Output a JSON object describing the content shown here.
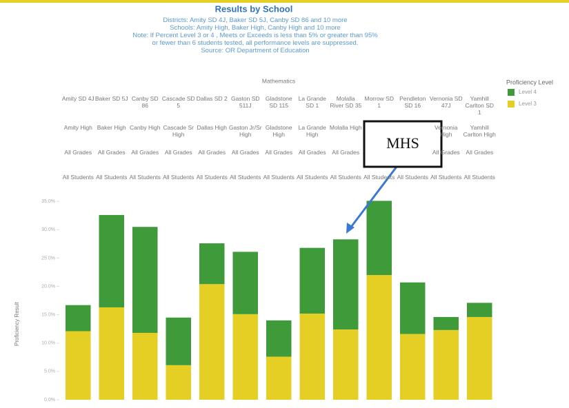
{
  "chart_data": {
    "type": "stacked_bar",
    "title": "Results by School",
    "subtitle": [
      "Districts: Amity SD 4J, Baker SD 5J, Canby SD 86 and 10 more",
      "Schools: Amity High, Baker High, Canby High and 10 more",
      "Note: If Percent Level 3 or 4 , Meets or Exceeds is less than 5% or greater than 95%",
      "or fewer than 6 students tested, all performance levels are suppressed.",
      "Source: OR Department of Education"
    ],
    "header": "Mathematics",
    "y_label": "Proficiency Result",
    "legend_title": "Proficiency Level",
    "categories": [
      "Amity SD 4J",
      "Baker SD 5J",
      "Canby SD 86",
      "Cascade SD 5",
      "Dallas SD 2",
      "Gaston SD 511J",
      "Gladstone SD 115",
      "La Grande SD 1",
      "Molalla River SD 35",
      "Morrow SD 1",
      "Pendleton SD 16",
      "Vernonia SD 47J",
      "Yamhill Carlton SD 1"
    ],
    "schools": [
      "Amity High",
      "Baker High",
      "Canby High",
      "Cascade Sr High",
      "Dallas High",
      "Gaston Jr/Sr High",
      "Gladstone High",
      "La Grande High",
      "Molalla High",
      null,
      null,
      "Vernonia High",
      "Yamhill Carlton High"
    ],
    "grades": [
      "All Grades",
      "All Grades",
      "All Grades",
      "All Grades",
      "All Grades",
      "All Grades",
      "All Grades",
      "All Grades",
      "All Grades",
      null,
      null,
      "All Grades",
      "All Grades"
    ],
    "students": [
      "All Students",
      "All Students",
      "All Students",
      "All Students",
      "All Students",
      "All Students",
      "All Students",
      "All Students",
      "All Students",
      "All Students",
      "All Students",
      "All Students",
      "All Students"
    ],
    "series": [
      {
        "name": "Level 3",
        "color": "#e6cf24",
        "values": [
          12.1,
          16.3,
          11.8,
          6.1,
          20.4,
          15.1,
          7.6,
          15.2,
          12.4,
          22.0,
          11.6,
          12.3,
          14.6
        ]
      },
      {
        "name": "Level 4",
        "color": "#3f9a3a",
        "values": [
          4.6,
          16.3,
          18.7,
          8.4,
          7.2,
          11.0,
          6.4,
          11.6,
          15.9,
          13.1,
          9.1,
          2.3,
          2.5
        ]
      }
    ],
    "ylim": [
      0,
      36
    ],
    "yticks": [
      {
        "value": 0,
        "label": "0.0%"
      },
      {
        "value": 5,
        "label": "5.0%"
      },
      {
        "value": 10,
        "label": "10.0%"
      },
      {
        "value": 15,
        "label": "15.0%"
      },
      {
        "value": 20,
        "label": "20.0%"
      },
      {
        "value": 25,
        "label": "25.0%"
      },
      {
        "value": 30,
        "label": "30.0%"
      },
      {
        "value": 35,
        "label": "35.0%"
      }
    ],
    "annotation": "MHS"
  }
}
